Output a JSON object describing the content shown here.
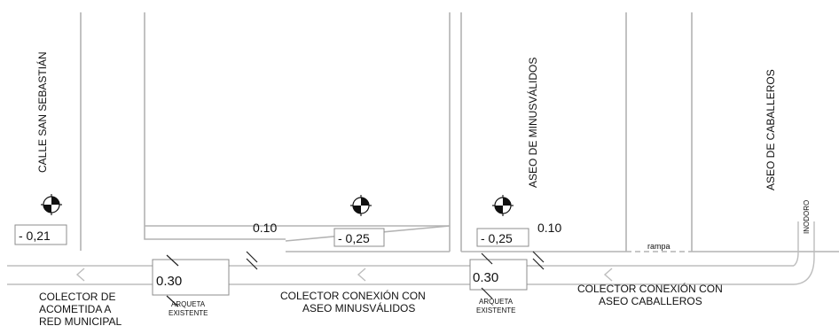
{
  "rooms": {
    "calle": "CALLE SAN SEBASTIÁN",
    "minusvalidos": "ASEO DE MINUSVÁLIDOS",
    "caballeros": "ASEO DE CABALLEROS"
  },
  "levels": {
    "calle": "- 0,21",
    "middle": "- 0,25",
    "minusvalidos": "- 0,25"
  },
  "dims": {
    "d1": "0.10",
    "d2": "0.10"
  },
  "arquetas": {
    "a1": {
      "value": "0.30",
      "label1": "ARQUETA",
      "label2": "EXISTENTE"
    },
    "a2": {
      "value": "0.30",
      "label1": "ARQUETA",
      "label2": "EXISTENTE"
    }
  },
  "labels": {
    "inodoro": "INODORO",
    "rampa": "rampa",
    "colector_red": [
      "COLECTOR DE",
      "ACOMETIDA A",
      "RED MUNICIPAL"
    ],
    "colector_minus": [
      "COLECTOR CONEXIÓN CON",
      "ASEO MINUSVÁLIDOS"
    ],
    "colector_cab": [
      "COLECTOR CONEXIÓN CON",
      "ASEO CABALLEROS"
    ]
  }
}
